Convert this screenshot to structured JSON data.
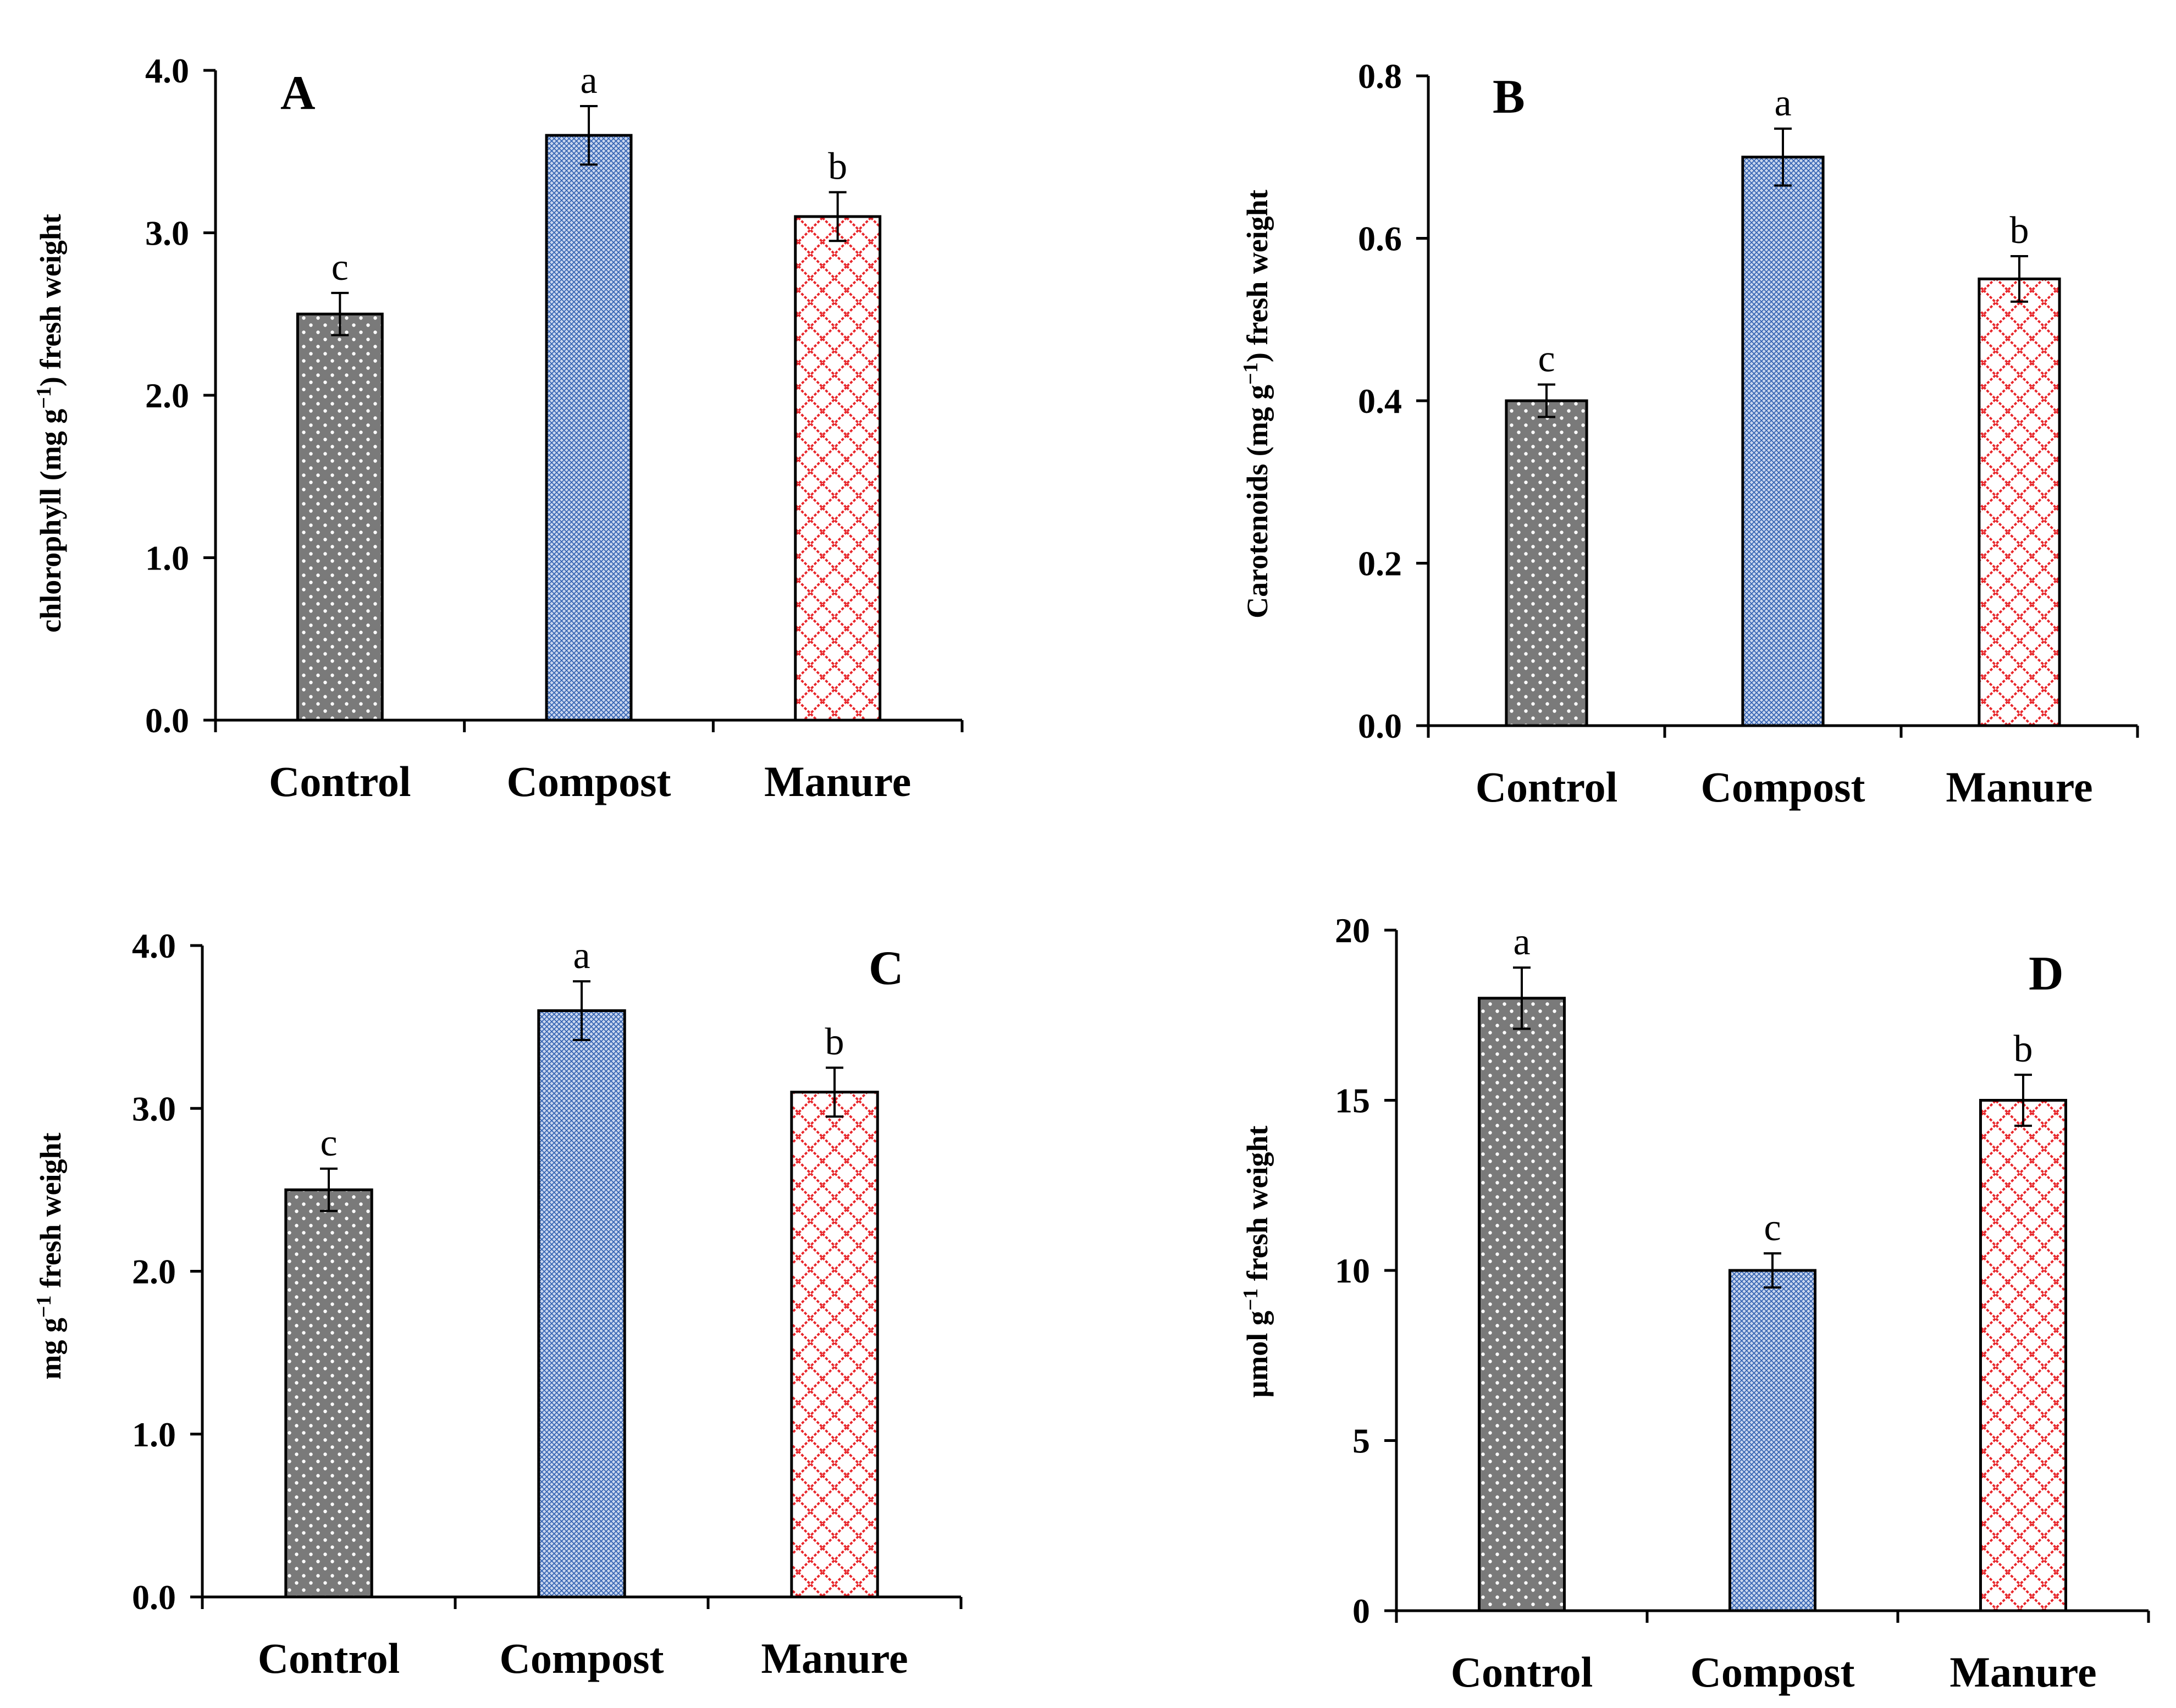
{
  "chart_data": [
    {
      "type": "bar",
      "panel": "A",
      "categories": [
        "Control",
        "Compost",
        "Manure"
      ],
      "values": [
        2.5,
        3.6,
        3.1
      ],
      "errors": [
        0.13,
        0.18,
        0.15
      ],
      "significance": [
        "c",
        "a",
        "b"
      ],
      "ylabel_main": "chlorophyll (mg g",
      "ylabel_sup": "−1",
      "ylabel_tail": ") fresh weight",
      "ylim": [
        0,
        4
      ],
      "yticks": [
        "0.0",
        "1.0",
        "2.0",
        "3.0",
        "4.0"
      ],
      "grid": false
    },
    {
      "type": "bar",
      "panel": "B",
      "categories": [
        "Control",
        "Compost",
        "Manure"
      ],
      "values": [
        0.4,
        0.7,
        0.55
      ],
      "errors": [
        0.02,
        0.035,
        0.028
      ],
      "significance": [
        "c",
        "a",
        "b"
      ],
      "ylabel_main": "Carotenoids (mg g",
      "ylabel_sup": "−1",
      "ylabel_tail": ") fresh weight",
      "ylim": [
        0,
        0.8
      ],
      "yticks": [
        "0.0",
        "0.2",
        "0.4",
        "0.6",
        "0.8"
      ],
      "grid": false
    },
    {
      "type": "bar",
      "panel": "C",
      "categories": [
        "Control",
        "Compost",
        "Manure"
      ],
      "values": [
        2.5,
        3.6,
        3.1
      ],
      "errors": [
        0.13,
        0.18,
        0.15
      ],
      "significance": [
        "c",
        "a",
        "b"
      ],
      "ylabel_main": "mg g",
      "ylabel_sup": "−1",
      "ylabel_tail": " fresh weight",
      "ylim": [
        0,
        4
      ],
      "yticks": [
        "0.0",
        "1.0",
        "2.0",
        "3.0",
        "4.0"
      ],
      "grid": false
    },
    {
      "type": "bar",
      "panel": "D",
      "categories": [
        "Control",
        "Compost",
        "Manure"
      ],
      "values": [
        18,
        10,
        15
      ],
      "errors": [
        0.9,
        0.5,
        0.75
      ],
      "significance": [
        "a",
        "c",
        "b"
      ],
      "ylabel_main": "μmol g",
      "ylabel_sup": "−1",
      "ylabel_tail": " fresh weight",
      "ylim": [
        0,
        20
      ],
      "yticks": [
        "0",
        "5",
        "10",
        "15",
        "20"
      ],
      "grid": false
    }
  ],
  "colors": {
    "control_fill": "#7a7a7a",
    "control_dot": "#ffffff",
    "compost_fill": "#c9d6ee",
    "compost_mesh": "#2f5fb0",
    "manure_fill": "#ffffff",
    "manure_lattice": "#e8262b",
    "axis": "#000000"
  },
  "patterns": [
    "dotted",
    "fine-mesh",
    "cross-hatch"
  ]
}
